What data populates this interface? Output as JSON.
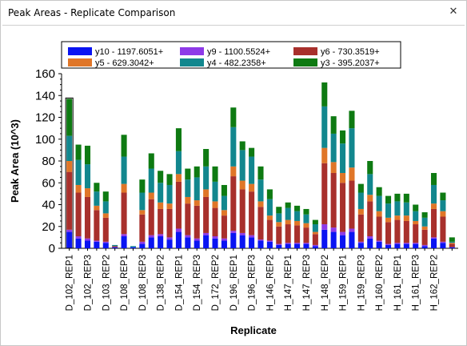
{
  "window": {
    "title": "Peak Areas - Replicate Comparison",
    "close_glyph": "✕"
  },
  "colors": {
    "y10": "#0a14f2",
    "y9": "#8e3ae8",
    "y6": "#a8302c",
    "y5": "#e07628",
    "y4": "#12878e",
    "y3": "#0e7a12"
  },
  "chart_data": {
    "type": "bar",
    "stacked": true,
    "xlabel": "Replicate",
    "ylabel": "Peak Area (10^3)",
    "ylim": [
      0,
      160
    ],
    "yticks": [
      0,
      20,
      40,
      60,
      80,
      100,
      120,
      140,
      160
    ],
    "legend": {
      "placement": "top",
      "columns": 3
    },
    "series": [
      {
        "key": "y10",
        "name": "y10 - 1197.6051+",
        "color": "#0a14f2"
      },
      {
        "key": "y9",
        "name": "y9 - 1100.5524+",
        "color": "#8e3ae8"
      },
      {
        "key": "y6",
        "name": "y6 - 730.3519+",
        "color": "#a8302c"
      },
      {
        "key": "y5",
        "name": "y5 - 629.3042+",
        "color": "#e07628"
      },
      {
        "key": "y4",
        "name": "y4 - 482.2358+",
        "color": "#12878e"
      },
      {
        "key": "y3",
        "name": "y3 - 395.2037+",
        "color": "#0e7a12"
      }
    ],
    "tick_labels": [
      "D_102_REP1",
      "D_102_REP3",
      "D_103_REP2",
      "D_108_REP1",
      "D_108_REP3",
      "D_138_REP2",
      "D_154_REP1",
      "D_154_REP3",
      "D_172_REP2",
      "D_196_REP1",
      "D_196_REP3",
      "H_146_REP2",
      "H_147_REP1",
      "H_147_REP3",
      "H_148_REP2",
      "H_159_REP1",
      "H_159_REP3",
      "H_160_REP2",
      "H_161_REP1",
      "H_161_REP3",
      "H_162_REP2"
    ],
    "selected_index": 0,
    "bars": [
      {
        "y10": 15,
        "y9": 2,
        "y6": 53,
        "y5": 10,
        "y4": 23,
        "y3": 34
      },
      {
        "y10": 9,
        "y9": 2,
        "y6": 40,
        "y5": 7,
        "y4": 23,
        "y3": 14
      },
      {
        "y10": 7,
        "y9": 2,
        "y6": 38,
        "y5": 8,
        "y4": 22,
        "y3": 17
      },
      {
        "y10": 6,
        "y9": 1,
        "y6": 28,
        "y5": 4,
        "y4": 13,
        "y3": 8
      },
      {
        "y10": 5,
        "y9": 1,
        "y6": 22,
        "y5": 4,
        "y4": 11,
        "y3": 9
      },
      {
        "y10": 1,
        "y9": 0,
        "y6": 1,
        "y5": 0,
        "y4": 1,
        "y3": 0
      },
      {
        "y10": 11,
        "y9": 2,
        "y6": 38,
        "y5": 8,
        "y4": 25,
        "y3": 20
      },
      {
        "y10": 1,
        "y9": 0,
        "y6": 0,
        "y5": 0,
        "y4": 1,
        "y3": 0
      },
      {
        "y10": 4,
        "y9": 2,
        "y6": 25,
        "y5": 4,
        "y4": 16,
        "y3": 12
      },
      {
        "y10": 10,
        "y9": 2,
        "y6": 33,
        "y5": 6,
        "y4": 22,
        "y3": 14
      },
      {
        "y10": 11,
        "y9": 2,
        "y6": 23,
        "y5": 6,
        "y4": 18,
        "y3": 11
      },
      {
        "y10": 8,
        "y9": 2,
        "y6": 26,
        "y5": 5,
        "y4": 17,
        "y3": 10
      },
      {
        "y10": 15,
        "y9": 3,
        "y6": 43,
        "y5": 7,
        "y4": 21,
        "y3": 21
      },
      {
        "y10": 10,
        "y9": 2,
        "y6": 29,
        "y5": 6,
        "y4": 16,
        "y3": 10
      },
      {
        "y10": 7,
        "y9": 2,
        "y6": 30,
        "y5": 5,
        "y4": 21,
        "y3": 10
      },
      {
        "y10": 12,
        "y9": 2,
        "y6": 33,
        "y5": 7,
        "y4": 21,
        "y3": 16
      },
      {
        "y10": 9,
        "y9": 2,
        "y6": 26,
        "y5": 6,
        "y4": 18,
        "y3": 14
      },
      {
        "y10": 7,
        "y9": 2,
        "y6": 21,
        "y5": 5,
        "y4": 13,
        "y3": 10
      },
      {
        "y10": 14,
        "y9": 2,
        "y6": 50,
        "y5": 9,
        "y4": 36,
        "y3": 18
      },
      {
        "y10": 12,
        "y9": 2,
        "y6": 40,
        "y5": 8,
        "y4": 28,
        "y3": 8
      },
      {
        "y10": 10,
        "y9": 2,
        "y6": 40,
        "y5": 7,
        "y4": 25,
        "y3": 8
      },
      {
        "y10": 7,
        "y9": 1,
        "y6": 30,
        "y5": 5,
        "y4": 20,
        "y3": 12
      },
      {
        "y10": 6,
        "y9": 1,
        "y6": 19,
        "y5": 4,
        "y4": 15,
        "y3": 9
      },
      {
        "y10": 3,
        "y9": 1,
        "y6": 16,
        "y5": 4,
        "y4": 8,
        "y3": 6
      },
      {
        "y10": 4,
        "y9": 1,
        "y6": 17,
        "y5": 4,
        "y4": 11,
        "y3": 5
      },
      {
        "y10": 4,
        "y9": 1,
        "y6": 16,
        "y5": 4,
        "y4": 9,
        "y3": 5
      },
      {
        "y10": 4,
        "y9": 1,
        "y6": 14,
        "y5": 4,
        "y4": 8,
        "y3": 5
      },
      {
        "y10": 2,
        "y9": 1,
        "y6": 10,
        "y5": 2,
        "y4": 7,
        "y3": 4
      },
      {
        "y10": 17,
        "y9": 5,
        "y6": 56,
        "y5": 14,
        "y4": 38,
        "y3": 22
      },
      {
        "y10": 15,
        "y9": 4,
        "y6": 50,
        "y5": 10,
        "y4": 26,
        "y3": 16
      },
      {
        "y10": 12,
        "y9": 3,
        "y6": 45,
        "y5": 9,
        "y4": 27,
        "y3": 12
      },
      {
        "y10": 15,
        "y9": 3,
        "y6": 44,
        "y5": 12,
        "y4": 36,
        "y3": 16
      },
      {
        "y10": 5,
        "y9": 1,
        "y6": 25,
        "y5": 5,
        "y4": 15,
        "y3": 8
      },
      {
        "y10": 9,
        "y9": 2,
        "y6": 32,
        "y5": 6,
        "y4": 19,
        "y3": 12
      },
      {
        "y10": 6,
        "y9": 1,
        "y6": 22,
        "y5": 5,
        "y4": 14,
        "y3": 8
      },
      {
        "y10": 3,
        "y9": 1,
        "y6": 20,
        "y5": 4,
        "y4": 13,
        "y3": 7
      },
      {
        "y10": 4,
        "y9": 1,
        "y6": 21,
        "y5": 4,
        "y4": 13,
        "y3": 7
      },
      {
        "y10": 4,
        "y9": 1,
        "y6": 20,
        "y5": 5,
        "y4": 12,
        "y3": 8
      },
      {
        "y10": 4,
        "y9": 1,
        "y6": 17,
        "y5": 3,
        "y4": 9,
        "y3": 6
      },
      {
        "y10": 2,
        "y9": 1,
        "y6": 14,
        "y5": 3,
        "y4": 8,
        "y3": 5
      },
      {
        "y10": 9,
        "y9": 1,
        "y6": 26,
        "y5": 5,
        "y4": 17,
        "y3": 11
      },
      {
        "y10": 5,
        "y9": 1,
        "y6": 23,
        "y5": 5,
        "y4": 10,
        "y3": 7
      },
      {
        "y10": 1,
        "y9": 0,
        "y6": 3,
        "y5": 1,
        "y4": 1,
        "y3": 4
      }
    ]
  }
}
